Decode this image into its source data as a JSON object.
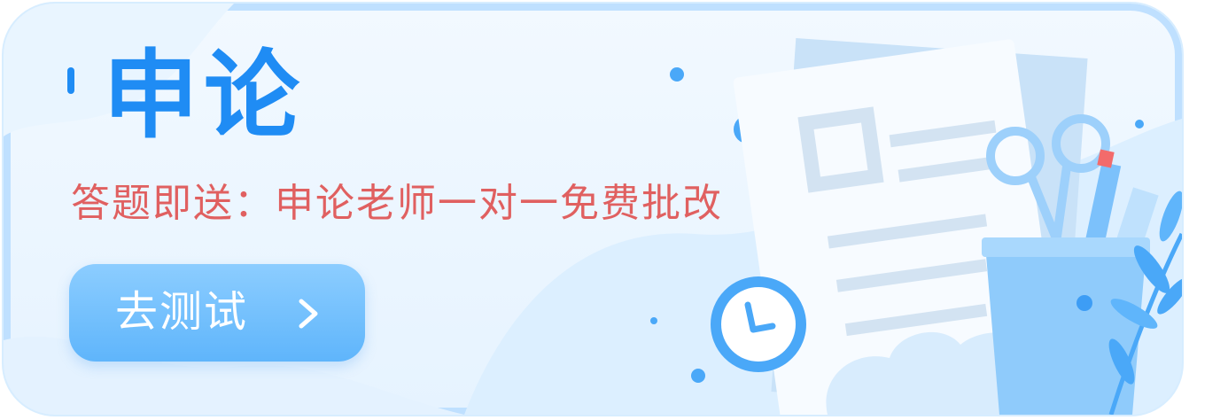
{
  "banner": {
    "title": "申论",
    "subtitle": "答题即送：申论老师一对一免费批改",
    "cta_label": "去测试",
    "cta_icon": "chevron-right-icon"
  },
  "colors": {
    "title": "#1f8cf4",
    "subtitle": "#e06060",
    "button": "#6dbdfc",
    "frame": "#bfe0ff"
  }
}
